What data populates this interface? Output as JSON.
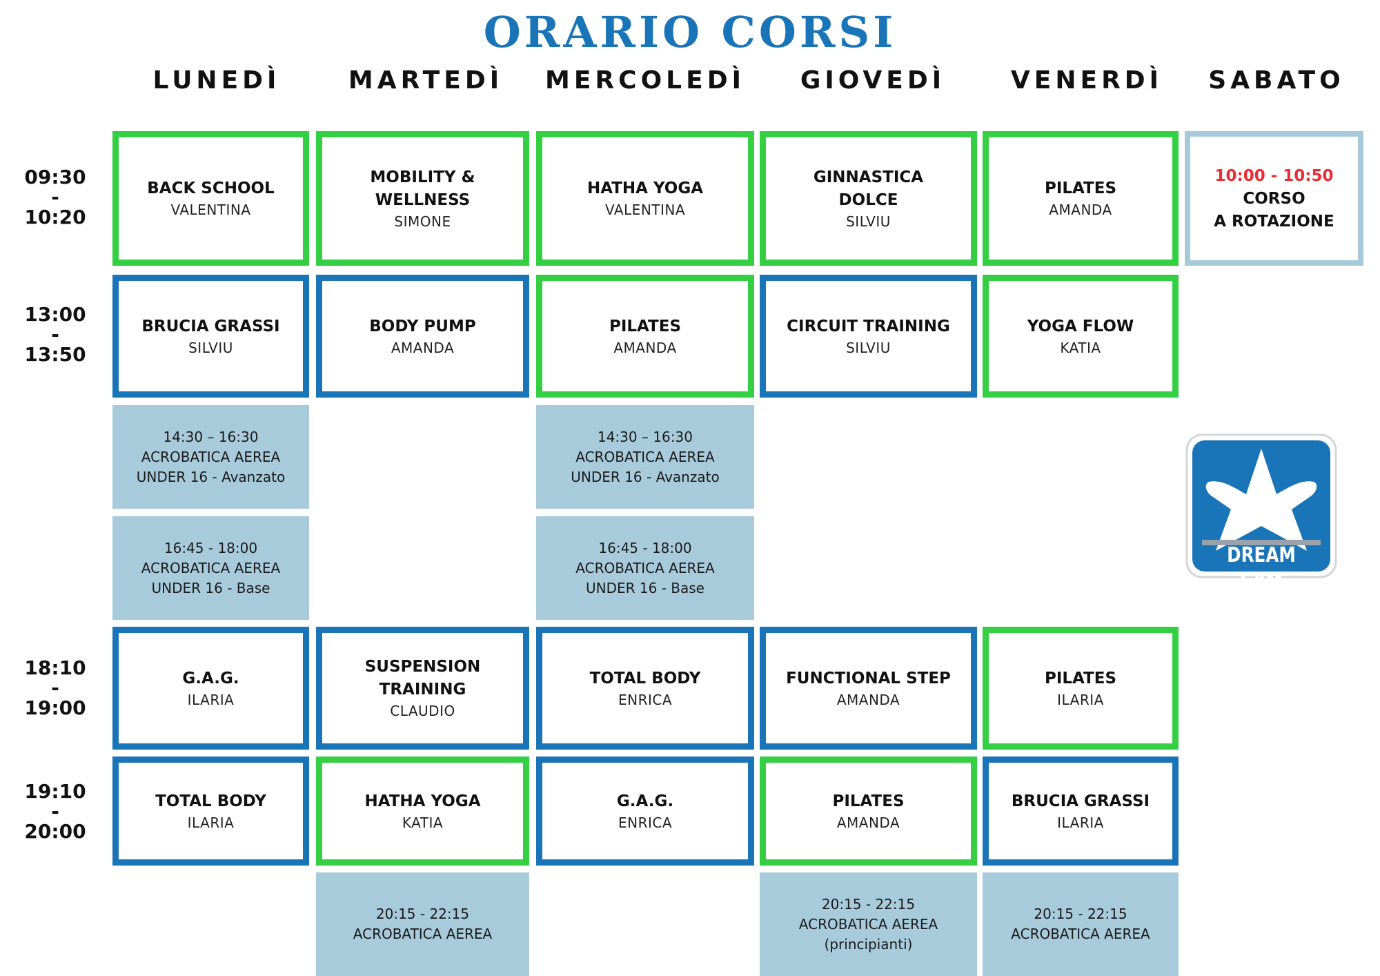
{
  "title": "ORARIO CORSI",
  "days": [
    "LUNEDÌ",
    "MARTEDÌ",
    "MERCOLEDÌ",
    "GIOVEDÌ",
    "VENERDÌ",
    "SABATO"
  ],
  "times": [
    {
      "start": "09:30",
      "sep": "-",
      "end": "10:20"
    },
    {
      "start": "13:00",
      "sep": "-",
      "end": "13:50"
    },
    {
      "start": "18:10",
      "sep": "-",
      "end": "19:00"
    },
    {
      "start": "19:10",
      "sep": "-",
      "end": "20:00"
    }
  ],
  "slot1": [
    {
      "name": "BACK SCHOOL",
      "instructor": "VALENTINA",
      "border": "#35cf43"
    },
    {
      "name": "MOBILITY &\nWELLNESS",
      "instructor": "SIMONE",
      "border": "#35cf43"
    },
    {
      "name": "HATHA YOGA",
      "instructor": "VALENTINA",
      "border": "#35cf43"
    },
    {
      "name": "GINNASTICA\nDOLCE",
      "instructor": "SILVIU",
      "border": "#35cf43"
    },
    {
      "name": "PILATES",
      "instructor": "AMANDA",
      "border": "#35cf43"
    }
  ],
  "saturday": {
    "time": "10:00 - 10:50",
    "line1": "CORSO",
    "line2": "A ROTAZIONE",
    "border": "#a6cad9",
    "time_color": "#ee2b32"
  },
  "slot2": [
    {
      "name": "BRUCIA GRASSI",
      "instructor": "SILVIU",
      "border": "#1a75b8"
    },
    {
      "name": "BODY PUMP",
      "instructor": "AMANDA",
      "border": "#1a75b8"
    },
    {
      "name": "PILATES",
      "instructor": "AMANDA",
      "border": "#35cf43"
    },
    {
      "name": "CIRCUIT TRAINING",
      "instructor": "SILVIU",
      "border": "#1a75b8"
    },
    {
      "name": "YOGA FLOW",
      "instructor": "KATIA",
      "border": "#35cf43"
    }
  ],
  "acro": {
    "mon_a": "14:30 – 16:30\nACROBATICA AEREA\nUNDER 16 - Avanzato",
    "wed_a": "14:30 – 16:30\nACROBATICA AEREA\nUNDER 16 - Avanzato",
    "mon_b": "16:45 - 18:00\nACROBATICA AEREA\nUNDER 16 - Base",
    "wed_b": "16:45 - 18:00\nACROBATICA AEREA\nUNDER 16 - Base",
    "tue_eve": "20:15 - 22:15\nACROBATICA AEREA",
    "thu_eve": "20:15 - 22:15\nACROBATICA AEREA\n(principianti)",
    "fri_eve": "20:15 - 22:15\nACROBATICA AEREA"
  },
  "slot3": [
    {
      "name": "G.A.G.",
      "instructor": "ILARIA",
      "border": "#1a75b8"
    },
    {
      "name": "SUSPENSION\nTRAINING",
      "instructor": "CLAUDIO",
      "border": "#1a75b8"
    },
    {
      "name": "TOTAL BODY",
      "instructor": "ENRICA",
      "border": "#1a75b8"
    },
    {
      "name": "FUNCTIONAL STEP",
      "instructor": "AMANDA",
      "border": "#1a75b8"
    },
    {
      "name": "PILATES",
      "instructor": "ILARIA",
      "border": "#35cf43"
    }
  ],
  "slot4": [
    {
      "name": "TOTAL BODY",
      "instructor": "ILARIA",
      "border": "#1a75b8"
    },
    {
      "name": "HATHA YOGA",
      "instructor": "KATIA",
      "border": "#35cf43"
    },
    {
      "name": "G.A.G.",
      "instructor": "ENRICA",
      "border": "#1a75b8"
    },
    {
      "name": "PILATES",
      "instructor": "AMANDA",
      "border": "#35cf43"
    },
    {
      "name": "BRUCIA GRASSI",
      "instructor": "ILARIA",
      "border": "#1a75b8"
    }
  ],
  "logo": {
    "text": "DREAM GYM",
    "icon": "star-logo-icon",
    "color": "#1a75b8"
  }
}
